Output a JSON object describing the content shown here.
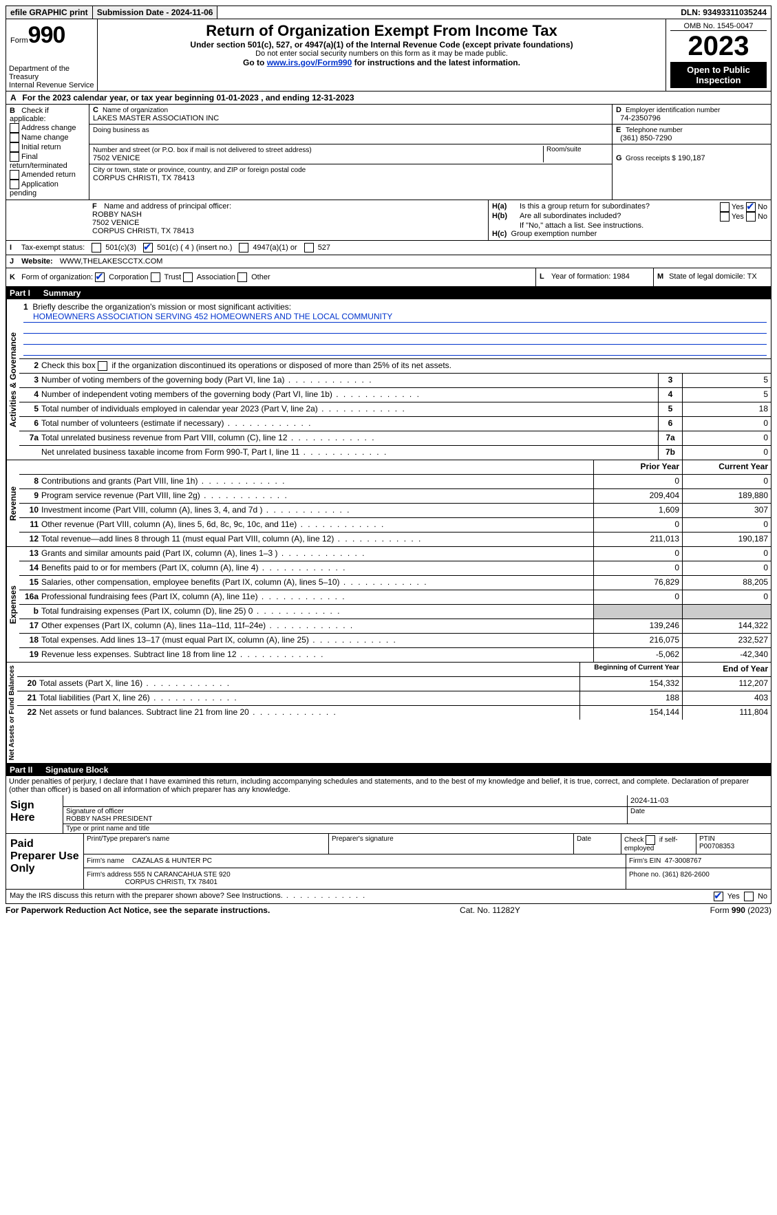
{
  "topbar": {
    "efile": "efile GRAPHIC print",
    "submission": "Submission Date - 2024-11-06",
    "dln": "DLN: 93493311035244"
  },
  "header": {
    "form_label": "Form",
    "form_no": "990",
    "dept1": "Department of the Treasury",
    "dept2": "Internal Revenue Service",
    "title": "Return of Organization Exempt From Income Tax",
    "sub1": "Under section 501(c), 527, or 4947(a)(1) of the Internal Revenue Code (except private foundations)",
    "sub2": "Do not enter social security numbers on this form as it may be made public.",
    "sub3_a": "Go to ",
    "sub3_link": "www.irs.gov/Form990",
    "sub3_b": " for instructions and the latest information.",
    "omb": "OMB No. 1545-0047",
    "year": "2023",
    "open": "Open to Public Inspection"
  },
  "A": {
    "text_a": "For the 2023 calendar year, or tax year beginning ",
    "begin": "01-01-2023",
    "mid": " , and ending ",
    "end": "12-31-2023"
  },
  "B": {
    "label": "Check if applicable:",
    "opts": [
      "Address change",
      "Name change",
      "Initial return",
      "Final return/terminated",
      "Amended return",
      "Application pending"
    ]
  },
  "C": {
    "name_label": "Name of organization",
    "name": "LAKES MASTER ASSOCIATION INC",
    "dba_label": "Doing business as",
    "addr_label": "Number and street (or P.O. box if mail is not delivered to street address)",
    "room_label": "Room/suite",
    "addr": "7502 VENICE",
    "city_label": "City or town, state or province, country, and ZIP or foreign postal code",
    "city": "CORPUS CHRISTI, TX  78413"
  },
  "D": {
    "label": "Employer identification number",
    "val": "74-2350796"
  },
  "E": {
    "label": "Telephone number",
    "val": "(361) 850-7290"
  },
  "G": {
    "label": "Gross receipts $",
    "val": "190,187"
  },
  "F": {
    "label": "Name and address of principal officer:",
    "l1": "ROBBY NASH",
    "l2": "7502 VENICE",
    "l3": "CORPUS CHRISTI, TX  78413"
  },
  "H": {
    "a": "Is this a group return for subordinates?",
    "b": "Are all subordinates included?",
    "note": "If \"No,\" attach a list. See instructions.",
    "c": "Group exemption number"
  },
  "I": {
    "label": "Tax-exempt status:",
    "o1": "501(c)(3)",
    "o2": "501(c) ( 4 ) (insert no.)",
    "o3": "4947(a)(1) or",
    "o4": "527"
  },
  "J": {
    "label": "Website:",
    "val": "WWW,THELAKESCCTX.COM"
  },
  "K": {
    "label": "Form of organization:",
    "o1": "Corporation",
    "o2": "Trust",
    "o3": "Association",
    "o4": "Other"
  },
  "L": {
    "label": "Year of formation:",
    "val": "1984"
  },
  "M": {
    "label": "State of legal domicile:",
    "val": "TX"
  },
  "partI": {
    "label": "Part I",
    "title": "Summary"
  },
  "summary": {
    "q1": "Briefly describe the organization's mission or most significant activities:",
    "mission": "HOMEOWNERS ASSOCIATION SERVING 452 HOMEOWNERS AND THE LOCAL COMMUNITY",
    "q2": "Check this box        if the organization discontinued its operations or disposed of more than 25% of its net assets.",
    "rows_gov": [
      {
        "n": "3",
        "t": "Number of voting members of the governing body (Part VI, line 1a)",
        "bn": "3",
        "v": "5"
      },
      {
        "n": "4",
        "t": "Number of independent voting members of the governing body (Part VI, line 1b)",
        "bn": "4",
        "v": "5"
      },
      {
        "n": "5",
        "t": "Total number of individuals employed in calendar year 2023 (Part V, line 2a)",
        "bn": "5",
        "v": "18"
      },
      {
        "n": "6",
        "t": "Total number of volunteers (estimate if necessary)",
        "bn": "6",
        "v": "0"
      },
      {
        "n": "7a",
        "t": "Total unrelated business revenue from Part VIII, column (C), line 12",
        "bn": "7a",
        "v": "0"
      },
      {
        "n": "",
        "t": "Net unrelated business taxable income from Form 990-T, Part I, line 11",
        "bn": "7b",
        "v": "0"
      }
    ],
    "hdr_prior": "Prior Year",
    "hdr_curr": "Current Year",
    "rows_rev": [
      {
        "n": "8",
        "t": "Contributions and grants (Part VIII, line 1h)",
        "p": "0",
        "c": "0"
      },
      {
        "n": "9",
        "t": "Program service revenue (Part VIII, line 2g)",
        "p": "209,404",
        "c": "189,880"
      },
      {
        "n": "10",
        "t": "Investment income (Part VIII, column (A), lines 3, 4, and 7d )",
        "p": "1,609",
        "c": "307"
      },
      {
        "n": "11",
        "t": "Other revenue (Part VIII, column (A), lines 5, 6d, 8c, 9c, 10c, and 11e)",
        "p": "0",
        "c": "0"
      },
      {
        "n": "12",
        "t": "Total revenue—add lines 8 through 11 (must equal Part VIII, column (A), line 12)",
        "p": "211,013",
        "c": "190,187"
      }
    ],
    "rows_exp": [
      {
        "n": "13",
        "t": "Grants and similar amounts paid (Part IX, column (A), lines 1–3 )",
        "p": "0",
        "c": "0"
      },
      {
        "n": "14",
        "t": "Benefits paid to or for members (Part IX, column (A), line 4)",
        "p": "0",
        "c": "0"
      },
      {
        "n": "15",
        "t": "Salaries, other compensation, employee benefits (Part IX, column (A), lines 5–10)",
        "p": "76,829",
        "c": "88,205"
      },
      {
        "n": "16a",
        "t": "Professional fundraising fees (Part IX, column (A), line 11e)",
        "p": "0",
        "c": "0"
      },
      {
        "n": "b",
        "t": "Total fundraising expenses (Part IX, column (D), line 25) 0",
        "p": "",
        "c": "",
        "shade": true
      },
      {
        "n": "17",
        "t": "Other expenses (Part IX, column (A), lines 11a–11d, 11f–24e)",
        "p": "139,246",
        "c": "144,322"
      },
      {
        "n": "18",
        "t": "Total expenses. Add lines 13–17 (must equal Part IX, column (A), line 25)",
        "p": "216,075",
        "c": "232,527"
      },
      {
        "n": "19",
        "t": "Revenue less expenses. Subtract line 18 from line 12",
        "p": "-5,062",
        "c": "-42,340"
      }
    ],
    "hdr_boy": "Beginning of Current Year",
    "hdr_eoy": "End of Year",
    "rows_net": [
      {
        "n": "20",
        "t": "Total assets (Part X, line 16)",
        "p": "154,332",
        "c": "112,207"
      },
      {
        "n": "21",
        "t": "Total liabilities (Part X, line 26)",
        "p": "188",
        "c": "403"
      },
      {
        "n": "22",
        "t": "Net assets or fund balances. Subtract line 21 from line 20",
        "p": "154,144",
        "c": "111,804"
      }
    ],
    "vtab_gov": "Activities & Governance",
    "vtab_rev": "Revenue",
    "vtab_exp": "Expenses",
    "vtab_net": "Net Assets or Fund Balances"
  },
  "partII": {
    "label": "Part II",
    "title": "Signature Block"
  },
  "perjury": "Under penalties of perjury, I declare that I have examined this return, including accompanying schedules and statements, and to the best of my knowledge and belief, it is true, correct, and complete. Declaration of preparer (other than officer) is based on all information of which preparer has any knowledge.",
  "sign": {
    "here": "Sign Here",
    "sig_officer": "Signature of officer",
    "date_l": "Date",
    "date_v": "2024-11-03",
    "nametitle_l": "Type or print name and title",
    "nametitle": "ROBBY NASH  PRESIDENT"
  },
  "paid": {
    "label": "Paid Preparer Use Only",
    "c1": "Print/Type preparer's name",
    "c2": "Preparer's signature",
    "c3": "Date",
    "c4a": "Check",
    "c4b": "if self-employed",
    "c5l": "PTIN",
    "c5v": "P00708353",
    "firm_l": "Firm's name",
    "firm": "CAZALAS & HUNTER PC",
    "ein_l": "Firm's EIN",
    "ein": "47-3008767",
    "addr_l": "Firm's address",
    "addr1": "555 N CARANCAHUA STE 920",
    "addr2": "CORPUS CHRISTI, TX  78401",
    "phone_l": "Phone no.",
    "phone": "(361) 826-2600"
  },
  "discuss": "May the IRS discuss this return with the preparer shown above? See Instructions.",
  "footer": {
    "l": "For Paperwork Reduction Act Notice, see the separate instructions.",
    "m": "Cat. No. 11282Y",
    "r": "Form 990 (2023)"
  },
  "yes": "Yes",
  "no": "No"
}
